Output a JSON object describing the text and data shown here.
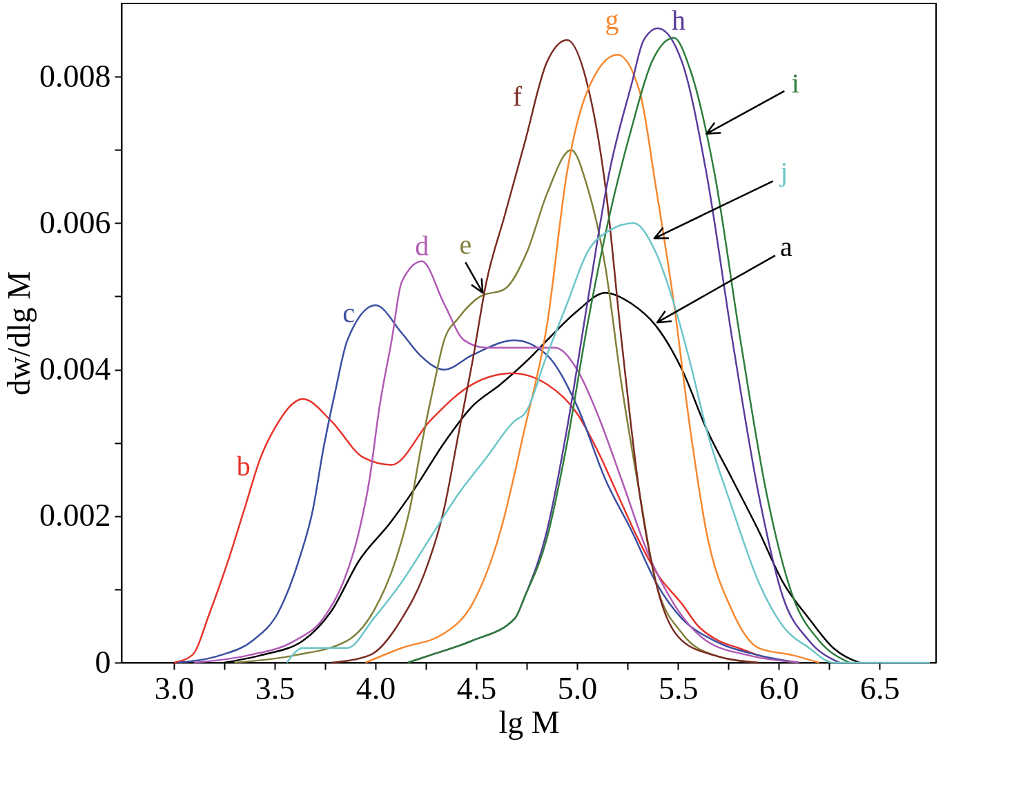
{
  "chart_data": {
    "type": "line",
    "xlabel": "lg M",
    "ylabel": "dw/dlg M",
    "xlim": [
      2.74,
      6.78
    ],
    "ylim": [
      0,
      0.009
    ],
    "xticks": [
      {
        "value": 3,
        "label": "3.0"
      },
      {
        "value": 3.25,
        "label": null
      },
      {
        "value": 3.5,
        "label": "3.5"
      },
      {
        "value": 3.75,
        "label": null
      },
      {
        "value": 4,
        "label": "4.0"
      },
      {
        "value": 4.25,
        "label": null
      },
      {
        "value": 4.5,
        "label": "4.5"
      },
      {
        "value": 4.75,
        "label": null
      },
      {
        "value": 5,
        "label": "5.0"
      },
      {
        "value": 5.25,
        "label": null
      },
      {
        "value": 5.5,
        "label": "5.5"
      },
      {
        "value": 5.75,
        "label": null
      },
      {
        "value": 6,
        "label": "6.0"
      },
      {
        "value": 6.25,
        "label": null
      },
      {
        "value": 6.5,
        "label": "6.5"
      }
    ],
    "yticks": [
      0,
      {
        "value": 0.001,
        "label": null
      },
      0.002,
      {
        "value": 0.003,
        "label": null
      },
      0.004,
      {
        "value": 0.005,
        "label": null
      },
      0.006,
      {
        "value": 0.007,
        "label": null
      },
      0.008
    ],
    "series": [
      {
        "name": "a",
        "color": "#000000",
        "x": [
          3.25,
          3.43,
          3.64,
          3.78,
          3.92,
          4.07,
          4.2,
          4.34,
          4.48,
          4.62,
          4.78,
          4.85,
          5.0,
          5.14,
          5.27,
          5.39,
          5.52,
          5.64,
          5.77,
          5.9,
          6.02,
          6.15,
          6.27,
          6.4
        ],
        "values": [
          0,
          0.0001,
          0.0003,
          0.0007,
          0.0014,
          0.0019,
          0.0024,
          0.003,
          0.0035,
          0.0038,
          0.0042,
          0.0044,
          0.0048,
          0.00505,
          0.0049,
          0.0046,
          0.004,
          0.0032,
          0.0025,
          0.0018,
          0.0011,
          0.0006,
          0.0002,
          0
        ]
      },
      {
        "name": "b",
        "color": "#e8322a",
        "x": [
          3.0,
          3.09,
          3.18,
          3.27,
          3.35,
          3.43,
          3.5,
          3.64,
          3.78,
          3.94,
          4.08,
          4.27,
          4.48,
          4.68,
          4.85,
          5.0,
          5.1,
          5.2,
          5.3,
          5.4,
          5.52,
          5.6,
          5.7,
          5.8,
          5.9,
          6.1
        ],
        "values": [
          0,
          0.0001,
          0.0007,
          0.0014,
          0.0021,
          0.0028,
          0.0032,
          0.0036,
          0.0033,
          0.0028,
          0.0027,
          0.0033,
          0.0038,
          0.00395,
          0.0038,
          0.0034,
          0.0029,
          0.0023,
          0.0017,
          0.0012,
          0.0008,
          0.0005,
          0.0003,
          0.0002,
          0.0001,
          0
        ]
      },
      {
        "name": "c",
        "color": "#3a4fa0",
        "x": [
          3.02,
          3.23,
          3.39,
          3.52,
          3.62,
          3.69,
          3.74,
          3.8,
          3.86,
          4.0,
          4.13,
          4.22,
          4.34,
          4.48,
          4.69,
          4.85,
          5.0,
          5.14,
          5.27,
          5.39,
          5.52,
          5.68,
          5.9,
          6.1
        ],
        "values": [
          0,
          0.0001,
          0.0003,
          0.0007,
          0.0014,
          0.0021,
          0.0029,
          0.0037,
          0.0044,
          0.00488,
          0.0045,
          0.0042,
          0.004,
          0.0042,
          0.0044,
          0.0042,
          0.0035,
          0.0025,
          0.0018,
          0.0011,
          0.0006,
          0.0003,
          0.0001,
          0
        ]
      },
      {
        "name": "d",
        "color": "#b05ab5",
        "x": [
          3.1,
          3.37,
          3.6,
          3.74,
          3.84,
          3.91,
          3.97,
          4.02,
          4.08,
          4.13,
          4.23,
          4.34,
          4.44,
          4.55,
          4.75,
          4.89,
          5.0,
          5.1,
          5.22,
          5.35,
          5.48,
          5.64,
          5.85,
          6.1
        ],
        "values": [
          0,
          0.0001,
          0.0003,
          0.0006,
          0.0011,
          0.0017,
          0.0025,
          0.0035,
          0.0044,
          0.0052,
          0.00548,
          0.0049,
          0.0044,
          0.0043,
          0.0043,
          0.0043,
          0.004,
          0.0034,
          0.0025,
          0.0015,
          0.0008,
          0.0003,
          0.0001,
          0
        ]
      },
      {
        "name": "e",
        "color": "#80803a",
        "x": [
          3.3,
          3.6,
          3.86,
          3.99,
          4.1,
          4.17,
          4.23,
          4.29,
          4.34,
          4.41,
          4.52,
          4.64,
          4.75,
          4.85,
          4.97,
          5.05,
          5.14,
          5.22,
          5.31,
          5.39,
          5.52,
          5.68,
          5.9
        ],
        "values": [
          0,
          0.0001,
          0.0003,
          0.0007,
          0.0014,
          0.0021,
          0.003,
          0.0038,
          0.0044,
          0.0047,
          0.005,
          0.0051,
          0.0056,
          0.0064,
          0.007,
          0.0065,
          0.0054,
          0.0038,
          0.0023,
          0.0011,
          0.0004,
          0.0001,
          0
        ]
      },
      {
        "name": "f",
        "color": "#7a2b22",
        "x": [
          3.78,
          3.97,
          4.13,
          4.24,
          4.34,
          4.41,
          4.48,
          4.55,
          4.64,
          4.74,
          4.85,
          4.95,
          5.05,
          5.14,
          5.22,
          5.31,
          5.39,
          5.52,
          5.68,
          5.9
        ],
        "values": [
          0,
          0.0001,
          0.0006,
          0.0012,
          0.0021,
          0.0031,
          0.0041,
          0.0052,
          0.0061,
          0.0071,
          0.0082,
          0.0085,
          0.0079,
          0.0065,
          0.0044,
          0.0023,
          0.0011,
          0.0003,
          0.0001,
          0
        ]
      },
      {
        "name": "g",
        "color": "#f7872e",
        "x": [
          3.95,
          4.13,
          4.34,
          4.48,
          4.62,
          4.74,
          4.85,
          4.95,
          5.05,
          5.2,
          5.31,
          5.39,
          5.48,
          5.56,
          5.64,
          5.77,
          5.9,
          6.07,
          6.2
        ],
        "values": [
          0,
          0.0002,
          0.0004,
          0.0008,
          0.0018,
          0.0032,
          0.0046,
          0.0067,
          0.0078,
          0.0083,
          0.0078,
          0.0065,
          0.0049,
          0.0032,
          0.0018,
          0.0007,
          0.0002,
          0.0001,
          0
        ]
      },
      {
        "name": "h",
        "color": "#5a3c9c",
        "x": [
          4.16,
          4.27,
          4.48,
          4.69,
          4.74,
          4.85,
          4.95,
          5.05,
          5.16,
          5.27,
          5.33,
          5.4,
          5.52,
          5.64,
          5.77,
          5.9,
          6.02,
          6.15,
          6.3
        ],
        "values": [
          0,
          0.0001,
          0.0003,
          0.0006,
          0.0009,
          0.0018,
          0.0032,
          0.0049,
          0.0067,
          0.0079,
          0.0085,
          0.00866,
          0.0082,
          0.0067,
          0.0044,
          0.0023,
          0.0009,
          0.0003,
          0
        ]
      },
      {
        "name": "i",
        "color": "#2e7d3a",
        "x": [
          4.16,
          4.27,
          4.48,
          4.69,
          4.74,
          4.85,
          4.95,
          5.05,
          5.16,
          5.27,
          5.37,
          5.48,
          5.56,
          5.68,
          5.81,
          5.94,
          6.07,
          6.2,
          6.35
        ],
        "values": [
          0,
          0.0001,
          0.0003,
          0.0006,
          0.0009,
          0.0017,
          0.003,
          0.0046,
          0.0061,
          0.0073,
          0.0082,
          0.00853,
          0.0081,
          0.0067,
          0.0044,
          0.0023,
          0.0009,
          0.0003,
          0
        ]
      },
      {
        "name": "j",
        "color": "#6cc5c8",
        "x": [
          3.56,
          3.64,
          3.86,
          3.99,
          4.13,
          4.27,
          4.41,
          4.55,
          4.69,
          4.74,
          4.85,
          4.95,
          5.05,
          5.16,
          5.28,
          5.39,
          5.48,
          5.56,
          5.64,
          5.77,
          5.9,
          6.02,
          6.15,
          6.27,
          6.75
        ],
        "values": [
          0,
          0.0002,
          0.0002,
          0.0006,
          0.0011,
          0.0017,
          0.0023,
          0.0028,
          0.0033,
          0.0034,
          0.0042,
          0.0049,
          0.0056,
          0.0059,
          0.006,
          0.0056,
          0.0049,
          0.0041,
          0.0032,
          0.0021,
          0.0011,
          0.0005,
          0.0002,
          0,
          0
        ]
      }
    ]
  }
}
